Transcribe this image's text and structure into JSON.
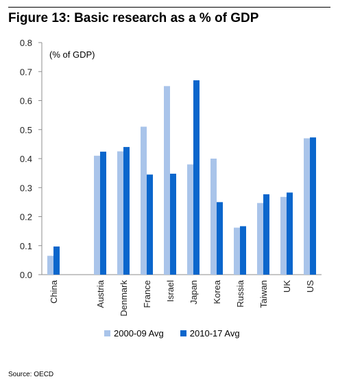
{
  "title": "Figure 13: Basic research as a % of GDP",
  "source": "Source: OECD",
  "colors": {
    "series1": "#a9c4ea",
    "series2": "#0a66cc",
    "axis": "#8c8c8c"
  },
  "chart_data": {
    "type": "bar",
    "unit_label": "(% of GDP)",
    "categories": [
      "China",
      "",
      "Austria",
      "Denmark",
      "France",
      "Israel",
      "Japan",
      "Korea",
      "Russia",
      "Taiwan",
      "UK",
      "US"
    ],
    "series": [
      {
        "name": "2000-09 Avg",
        "values": [
          0.065,
          null,
          0.41,
          0.425,
          0.51,
          0.65,
          0.38,
          0.4,
          0.162,
          0.247,
          0.268,
          0.47
        ]
      },
      {
        "name": "2010-17 Avg",
        "values": [
          0.097,
          null,
          0.424,
          0.44,
          0.345,
          0.348,
          0.67,
          0.25,
          0.167,
          0.277,
          0.283,
          0.473
        ]
      }
    ],
    "ylim": [
      0,
      0.8
    ],
    "yticks": [
      "0.0",
      "0.1",
      "0.2",
      "0.3",
      "0.4",
      "0.5",
      "0.6",
      "0.7",
      "0.8"
    ],
    "grid": false,
    "legend_position": "bottom"
  }
}
